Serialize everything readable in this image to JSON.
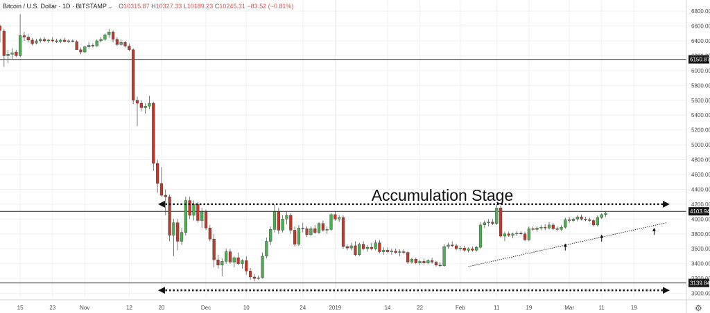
{
  "header": {
    "symbol": "Bitcoin / U.S. Dollar · 1D · BITSTAMP",
    "o_label": "O",
    "o_value": "10315.87",
    "h_label": "H",
    "h_value": "10327.33",
    "l_label": "L",
    "l_value": "10189.23",
    "c_label": "C",
    "c_value": "10245.31",
    "change": "−83.52 (−0.81%)"
  },
  "settings_icon": "gear-icon",
  "colors": {
    "up": "#4caf50",
    "down": "#c0392b",
    "grid": "#eef0f4",
    "line": "#333333"
  },
  "chart_data": {
    "type": "candlestick",
    "y_axis_ticks": [
      "6800.00",
      "6600.00",
      "6400.00",
      "6200.00",
      "6000.00",
      "5800.00",
      "5600.00",
      "5400.00",
      "5200.00",
      "5000.00",
      "4800.00",
      "4600.00",
      "4400.00",
      "4200.00",
      "4000.00",
      "3800.00",
      "3600.00",
      "3400.00",
      "3200.00",
      "3000.00"
    ],
    "y_values": [
      6800,
      6600,
      6400,
      6200,
      6000,
      5800,
      5600,
      5400,
      5200,
      5000,
      4800,
      4600,
      4400,
      4200,
      4000,
      3800,
      3600,
      3400,
      3200,
      3000
    ],
    "x_axis_ticks": [
      "15",
      "23",
      "Nov",
      "12",
      "20",
      "Dec",
      "10",
      "24",
      "2019",
      "14",
      "22",
      "Feb",
      "11",
      "19",
      "Mar",
      "11",
      "19"
    ],
    "x_tick_days": [
      0,
      8,
      16,
      27,
      35,
      46,
      56,
      70,
      78,
      91,
      99,
      109,
      118,
      126,
      136,
      144,
      152
    ],
    "ylim": [
      2940,
      6950
    ],
    "xlim_days": [
      -5,
      165
    ],
    "horizontal_lines": [
      {
        "value": 6150.87,
        "label": "6150.87"
      },
      {
        "value": 4103.94,
        "label": "4103.94"
      },
      {
        "value": 3139.84,
        "label": "3139.84"
      }
    ],
    "annotation": "Accumulation Stage",
    "range_arrows": [
      {
        "value": 4200,
        "from_day": 35,
        "to_day": 160
      },
      {
        "value": 3040,
        "from_day": 35,
        "to_day": 160
      }
    ],
    "trendline": {
      "from": {
        "day": 111,
        "value": 3360
      },
      "to": {
        "day": 160,
        "value": 3950
      }
    },
    "support_arrows": [
      {
        "day": 135,
        "value": 3650
      },
      {
        "day": 144,
        "value": 3770
      },
      {
        "day": 157,
        "value": 3860
      }
    ],
    "candles": [
      {
        "day": -5,
        "o": 6600,
        "h": 6620,
        "l": 6380,
        "c": 6540
      },
      {
        "day": -4,
        "o": 6530,
        "h": 6560,
        "l": 6050,
        "c": 6200
      },
      {
        "day": -3,
        "o": 6200,
        "h": 6280,
        "l": 6100,
        "c": 6220
      },
      {
        "day": -2,
        "o": 6220,
        "h": 6300,
        "l": 6150,
        "c": 6240
      },
      {
        "day": -1,
        "o": 6250,
        "h": 6280,
        "l": 6180,
        "c": 6200
      },
      {
        "day": 0,
        "o": 6200,
        "h": 6760,
        "l": 6180,
        "c": 6470
      },
      {
        "day": 1,
        "o": 6470,
        "h": 6520,
        "l": 6400,
        "c": 6450
      },
      {
        "day": 2,
        "o": 6450,
        "h": 6490,
        "l": 6380,
        "c": 6410
      },
      {
        "day": 3,
        "o": 6410,
        "h": 6440,
        "l": 6340,
        "c": 6360
      },
      {
        "day": 4,
        "o": 6370,
        "h": 6430,
        "l": 6350,
        "c": 6400
      },
      {
        "day": 5,
        "o": 6400,
        "h": 6440,
        "l": 6370,
        "c": 6420
      },
      {
        "day": 6,
        "o": 6420,
        "h": 6450,
        "l": 6380,
        "c": 6400
      },
      {
        "day": 7,
        "o": 6400,
        "h": 6430,
        "l": 6370,
        "c": 6410
      },
      {
        "day": 8,
        "o": 6410,
        "h": 6450,
        "l": 6380,
        "c": 6400
      },
      {
        "day": 9,
        "o": 6400,
        "h": 6430,
        "l": 6370,
        "c": 6390
      },
      {
        "day": 10,
        "o": 6390,
        "h": 6430,
        "l": 6370,
        "c": 6410
      },
      {
        "day": 11,
        "o": 6410,
        "h": 6440,
        "l": 6380,
        "c": 6390
      },
      {
        "day": 12,
        "o": 6390,
        "h": 6420,
        "l": 6370,
        "c": 6400
      },
      {
        "day": 13,
        "o": 6400,
        "h": 6420,
        "l": 6380,
        "c": 6390
      },
      {
        "day": 14,
        "o": 6390,
        "h": 6410,
        "l": 6300,
        "c": 6280
      },
      {
        "day": 15,
        "o": 6280,
        "h": 6310,
        "l": 6220,
        "c": 6250
      },
      {
        "day": 16,
        "o": 6250,
        "h": 6330,
        "l": 6240,
        "c": 6320
      },
      {
        "day": 17,
        "o": 6320,
        "h": 6380,
        "l": 6300,
        "c": 6340
      },
      {
        "day": 18,
        "o": 6340,
        "h": 6370,
        "l": 6310,
        "c": 6330
      },
      {
        "day": 19,
        "o": 6330,
        "h": 6420,
        "l": 6320,
        "c": 6400
      },
      {
        "day": 20,
        "o": 6400,
        "h": 6450,
        "l": 6380,
        "c": 6420
      },
      {
        "day": 21,
        "o": 6420,
        "h": 6500,
        "l": 6400,
        "c": 6480
      },
      {
        "day": 22,
        "o": 6480,
        "h": 6560,
        "l": 6440,
        "c": 6520
      },
      {
        "day": 23,
        "o": 6520,
        "h": 6540,
        "l": 6380,
        "c": 6420
      },
      {
        "day": 24,
        "o": 6420,
        "h": 6450,
        "l": 6330,
        "c": 6350
      },
      {
        "day": 25,
        "o": 6350,
        "h": 6420,
        "l": 6330,
        "c": 6380
      },
      {
        "day": 26,
        "o": 6380,
        "h": 6400,
        "l": 6310,
        "c": 6330
      },
      {
        "day": 27,
        "o": 6330,
        "h": 6360,
        "l": 6260,
        "c": 6280
      },
      {
        "day": 28,
        "o": 6280,
        "h": 6300,
        "l": 5550,
        "c": 5600
      },
      {
        "day": 29,
        "o": 5600,
        "h": 5650,
        "l": 5250,
        "c": 5560
      },
      {
        "day": 30,
        "o": 5560,
        "h": 5600,
        "l": 5450,
        "c": 5500
      },
      {
        "day": 31,
        "o": 5500,
        "h": 5560,
        "l": 5420,
        "c": 5520
      },
      {
        "day": 32,
        "o": 5520,
        "h": 5660,
        "l": 5480,
        "c": 5560
      },
      {
        "day": 33,
        "o": 5560,
        "h": 5580,
        "l": 4650,
        "c": 4750
      },
      {
        "day": 34,
        "o": 4750,
        "h": 4800,
        "l": 4350,
        "c": 4480
      },
      {
        "day": 35,
        "o": 4480,
        "h": 4700,
        "l": 4300,
        "c": 4320
      },
      {
        "day": 36,
        "o": 4320,
        "h": 4400,
        "l": 4050,
        "c": 4300
      },
      {
        "day": 37,
        "o": 4300,
        "h": 4330,
        "l": 3700,
        "c": 3780
      },
      {
        "day": 38,
        "o": 3780,
        "h": 4000,
        "l": 3500,
        "c": 3950
      },
      {
        "day": 39,
        "o": 3950,
        "h": 4000,
        "l": 3580,
        "c": 3700
      },
      {
        "day": 40,
        "o": 3700,
        "h": 3880,
        "l": 3650,
        "c": 3820
      },
      {
        "day": 41,
        "o": 3820,
        "h": 4300,
        "l": 3780,
        "c": 4250
      },
      {
        "day": 42,
        "o": 4250,
        "h": 4300,
        "l": 4000,
        "c": 4050
      },
      {
        "day": 43,
        "o": 4050,
        "h": 4250,
        "l": 3980,
        "c": 4200
      },
      {
        "day": 44,
        "o": 4200,
        "h": 4230,
        "l": 3950,
        "c": 3980
      },
      {
        "day": 45,
        "o": 3980,
        "h": 4150,
        "l": 3880,
        "c": 4100
      },
      {
        "day": 46,
        "o": 4100,
        "h": 4130,
        "l": 3850,
        "c": 3880
      },
      {
        "day": 47,
        "o": 3880,
        "h": 3920,
        "l": 3700,
        "c": 3730
      },
      {
        "day": 48,
        "o": 3730,
        "h": 3800,
        "l": 3350,
        "c": 3450
      },
      {
        "day": 49,
        "o": 3450,
        "h": 3520,
        "l": 3330,
        "c": 3380
      },
      {
        "day": 50,
        "o": 3380,
        "h": 3470,
        "l": 3230,
        "c": 3430
      },
      {
        "day": 51,
        "o": 3430,
        "h": 3600,
        "l": 3400,
        "c": 3560
      },
      {
        "day": 52,
        "o": 3560,
        "h": 3600,
        "l": 3400,
        "c": 3420
      },
      {
        "day": 53,
        "o": 3420,
        "h": 3500,
        "l": 3350,
        "c": 3480
      },
      {
        "day": 54,
        "o": 3480,
        "h": 3550,
        "l": 3380,
        "c": 3400
      },
      {
        "day": 55,
        "o": 3400,
        "h": 3460,
        "l": 3330,
        "c": 3440
      },
      {
        "day": 56,
        "o": 3440,
        "h": 3500,
        "l": 3250,
        "c": 3300
      },
      {
        "day": 57,
        "o": 3300,
        "h": 3340,
        "l": 3180,
        "c": 3220
      },
      {
        "day": 58,
        "o": 3220,
        "h": 3260,
        "l": 3160,
        "c": 3200
      },
      {
        "day": 59,
        "o": 3200,
        "h": 3240,
        "l": 3180,
        "c": 3210
      },
      {
        "day": 60,
        "o": 3210,
        "h": 3550,
        "l": 3200,
        "c": 3500
      },
      {
        "day": 61,
        "o": 3500,
        "h": 3750,
        "l": 3470,
        "c": 3700
      },
      {
        "day": 62,
        "o": 3700,
        "h": 3900,
        "l": 3650,
        "c": 3860
      },
      {
        "day": 63,
        "o": 3860,
        "h": 4200,
        "l": 3820,
        "c": 4100
      },
      {
        "day": 64,
        "o": 4100,
        "h": 4150,
        "l": 3800,
        "c": 3850
      },
      {
        "day": 65,
        "o": 3850,
        "h": 4050,
        "l": 3820,
        "c": 4000
      },
      {
        "day": 66,
        "o": 4000,
        "h": 4100,
        "l": 3930,
        "c": 4050
      },
      {
        "day": 67,
        "o": 4050,
        "h": 4080,
        "l": 3800,
        "c": 3850
      },
      {
        "day": 68,
        "o": 3850,
        "h": 3900,
        "l": 3630,
        "c": 3660
      },
      {
        "day": 69,
        "o": 3660,
        "h": 3920,
        "l": 3640,
        "c": 3880
      },
      {
        "day": 70,
        "o": 3880,
        "h": 3950,
        "l": 3820,
        "c": 3870
      },
      {
        "day": 71,
        "o": 3870,
        "h": 3900,
        "l": 3760,
        "c": 3790
      },
      {
        "day": 72,
        "o": 3790,
        "h": 3900,
        "l": 3770,
        "c": 3870
      },
      {
        "day": 73,
        "o": 3870,
        "h": 3920,
        "l": 3800,
        "c": 3820
      },
      {
        "day": 74,
        "o": 3820,
        "h": 3960,
        "l": 3800,
        "c": 3940
      },
      {
        "day": 75,
        "o": 3940,
        "h": 3980,
        "l": 3830,
        "c": 3850
      },
      {
        "day": 76,
        "o": 3850,
        "h": 3900,
        "l": 3800,
        "c": 3860
      },
      {
        "day": 77,
        "o": 3860,
        "h": 4080,
        "l": 3840,
        "c": 4060
      },
      {
        "day": 78,
        "o": 4060,
        "h": 4100,
        "l": 3980,
        "c": 4000
      },
      {
        "day": 79,
        "o": 4000,
        "h": 4050,
        "l": 3960,
        "c": 4020
      },
      {
        "day": 80,
        "o": 4020,
        "h": 4050,
        "l": 3600,
        "c": 3630
      },
      {
        "day": 81,
        "o": 3630,
        "h": 3660,
        "l": 3580,
        "c": 3610
      },
      {
        "day": 82,
        "o": 3610,
        "h": 3680,
        "l": 3580,
        "c": 3640
      },
      {
        "day": 83,
        "o": 3640,
        "h": 3700,
        "l": 3500,
        "c": 3520
      },
      {
        "day": 84,
        "o": 3520,
        "h": 3680,
        "l": 3500,
        "c": 3660
      },
      {
        "day": 85,
        "o": 3660,
        "h": 3700,
        "l": 3580,
        "c": 3600
      },
      {
        "day": 86,
        "o": 3600,
        "h": 3650,
        "l": 3560,
        "c": 3620
      },
      {
        "day": 87,
        "o": 3620,
        "h": 3680,
        "l": 3580,
        "c": 3600
      },
      {
        "day": 88,
        "o": 3600,
        "h": 3720,
        "l": 3580,
        "c": 3680
      },
      {
        "day": 89,
        "o": 3680,
        "h": 3720,
        "l": 3540,
        "c": 3560
      },
      {
        "day": 90,
        "o": 3560,
        "h": 3620,
        "l": 3520,
        "c": 3580
      },
      {
        "day": 91,
        "o": 3580,
        "h": 3620,
        "l": 3540,
        "c": 3560
      },
      {
        "day": 92,
        "o": 3560,
        "h": 3600,
        "l": 3520,
        "c": 3570
      },
      {
        "day": 93,
        "o": 3570,
        "h": 3600,
        "l": 3530,
        "c": 3550
      },
      {
        "day": 94,
        "o": 3550,
        "h": 3590,
        "l": 3500,
        "c": 3560
      },
      {
        "day": 95,
        "o": 3560,
        "h": 3590,
        "l": 3530,
        "c": 3550
      },
      {
        "day": 96,
        "o": 3550,
        "h": 3570,
        "l": 3400,
        "c": 3420
      },
      {
        "day": 97,
        "o": 3420,
        "h": 3480,
        "l": 3400,
        "c": 3460
      },
      {
        "day": 98,
        "o": 3460,
        "h": 3480,
        "l": 3390,
        "c": 3410
      },
      {
        "day": 99,
        "o": 3410,
        "h": 3450,
        "l": 3380,
        "c": 3430
      },
      {
        "day": 100,
        "o": 3430,
        "h": 3470,
        "l": 3390,
        "c": 3410
      },
      {
        "day": 101,
        "o": 3410,
        "h": 3460,
        "l": 3390,
        "c": 3440
      },
      {
        "day": 102,
        "o": 3440,
        "h": 3480,
        "l": 3400,
        "c": 3420
      },
      {
        "day": 103,
        "o": 3420,
        "h": 3440,
        "l": 3360,
        "c": 3380
      },
      {
        "day": 104,
        "o": 3380,
        "h": 3420,
        "l": 3350,
        "c": 3370
      },
      {
        "day": 105,
        "o": 3370,
        "h": 3660,
        "l": 3360,
        "c": 3630
      },
      {
        "day": 106,
        "o": 3630,
        "h": 3680,
        "l": 3600,
        "c": 3650
      },
      {
        "day": 107,
        "o": 3650,
        "h": 3700,
        "l": 3620,
        "c": 3640
      },
      {
        "day": 108,
        "o": 3640,
        "h": 3670,
        "l": 3580,
        "c": 3600
      },
      {
        "day": 109,
        "o": 3600,
        "h": 3640,
        "l": 3570,
        "c": 3610
      },
      {
        "day": 110,
        "o": 3610,
        "h": 3640,
        "l": 3560,
        "c": 3580
      },
      {
        "day": 111,
        "o": 3580,
        "h": 3620,
        "l": 3550,
        "c": 3600
      },
      {
        "day": 112,
        "o": 3600,
        "h": 3630,
        "l": 3560,
        "c": 3580
      },
      {
        "day": 113,
        "o": 3580,
        "h": 3640,
        "l": 3560,
        "c": 3620
      },
      {
        "day": 114,
        "o": 3620,
        "h": 3960,
        "l": 3600,
        "c": 3920
      },
      {
        "day": 115,
        "o": 3920,
        "h": 3980,
        "l": 3880,
        "c": 3950
      },
      {
        "day": 116,
        "o": 3950,
        "h": 4000,
        "l": 3900,
        "c": 3960
      },
      {
        "day": 117,
        "o": 3960,
        "h": 4000,
        "l": 3920,
        "c": 3940
      },
      {
        "day": 118,
        "o": 3940,
        "h": 4200,
        "l": 3920,
        "c": 4150
      },
      {
        "day": 119,
        "o": 4150,
        "h": 4180,
        "l": 3750,
        "c": 3770
      },
      {
        "day": 120,
        "o": 3770,
        "h": 3830,
        "l": 3700,
        "c": 3800
      },
      {
        "day": 121,
        "o": 3800,
        "h": 3830,
        "l": 3760,
        "c": 3780
      },
      {
        "day": 122,
        "o": 3780,
        "h": 3820,
        "l": 3740,
        "c": 3800
      },
      {
        "day": 123,
        "o": 3800,
        "h": 3840,
        "l": 3770,
        "c": 3810
      },
      {
        "day": 124,
        "o": 3810,
        "h": 3840,
        "l": 3780,
        "c": 3800
      },
      {
        "day": 125,
        "o": 3800,
        "h": 3830,
        "l": 3700,
        "c": 3720
      },
      {
        "day": 126,
        "o": 3720,
        "h": 3900,
        "l": 3700,
        "c": 3870
      },
      {
        "day": 127,
        "o": 3870,
        "h": 3900,
        "l": 3840,
        "c": 3860
      },
      {
        "day": 128,
        "o": 3860,
        "h": 3900,
        "l": 3830,
        "c": 3880
      },
      {
        "day": 129,
        "o": 3880,
        "h": 3920,
        "l": 3850,
        "c": 3890
      },
      {
        "day": 130,
        "o": 3890,
        "h": 3930,
        "l": 3850,
        "c": 3880
      },
      {
        "day": 131,
        "o": 3880,
        "h": 3960,
        "l": 3860,
        "c": 3920
      },
      {
        "day": 132,
        "o": 3920,
        "h": 3950,
        "l": 3850,
        "c": 3870
      },
      {
        "day": 133,
        "o": 3870,
        "h": 3900,
        "l": 3840,
        "c": 3860
      },
      {
        "day": 134,
        "o": 3860,
        "h": 3920,
        "l": 3840,
        "c": 3890
      },
      {
        "day": 135,
        "o": 3890,
        "h": 4020,
        "l": 3870,
        "c": 3990
      },
      {
        "day": 136,
        "o": 3990,
        "h": 4030,
        "l": 3950,
        "c": 3980
      },
      {
        "day": 137,
        "o": 3980,
        "h": 4020,
        "l": 3960,
        "c": 4000
      },
      {
        "day": 138,
        "o": 4000,
        "h": 4050,
        "l": 3970,
        "c": 4030
      },
      {
        "day": 139,
        "o": 4030,
        "h": 4060,
        "l": 3980,
        "c": 4000
      },
      {
        "day": 140,
        "o": 4000,
        "h": 4030,
        "l": 3970,
        "c": 3990
      },
      {
        "day": 141,
        "o": 3990,
        "h": 4020,
        "l": 3960,
        "c": 3980
      },
      {
        "day": 142,
        "o": 3980,
        "h": 4000,
        "l": 3900,
        "c": 3920
      },
      {
        "day": 143,
        "o": 3920,
        "h": 4050,
        "l": 3900,
        "c": 4020
      },
      {
        "day": 144,
        "o": 4020,
        "h": 4080,
        "l": 4000,
        "c": 4060
      },
      {
        "day": 145,
        "o": 4060,
        "h": 4110,
        "l": 4030,
        "c": 4080
      }
    ]
  }
}
